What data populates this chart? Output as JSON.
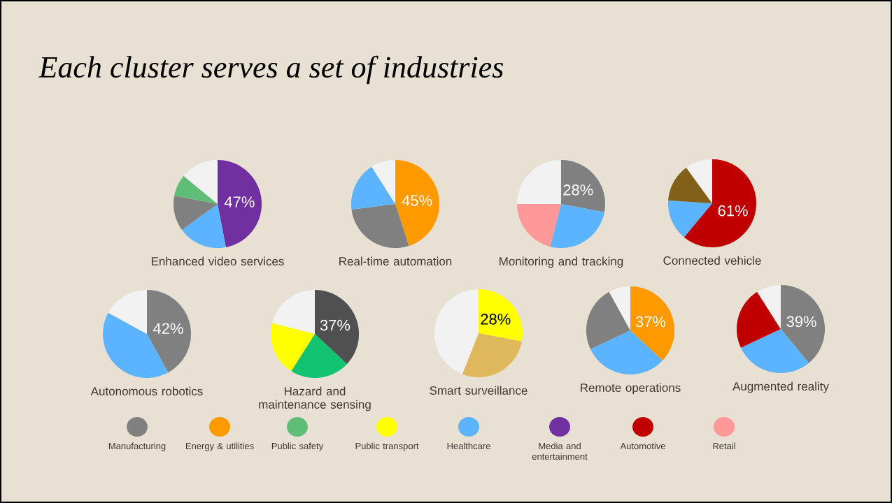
{
  "chart_data": [
    {
      "type": "other",
      "title": "Each cluster serves a set of industries",
      "categories": [
        "Manufacturing",
        "Energy & utilities",
        "Public safety",
        "Public transport",
        "Healthcare",
        "Media and entertainment",
        "Automotive",
        "Retail"
      ],
      "colors": [
        "#808080",
        "#ff9900",
        "#60bd78",
        "#ffff00",
        "#5cb3ff",
        "#7030a0",
        "#c00000",
        "#ff9999"
      ]
    },
    {
      "type": "pie",
      "title": "Enhanced video services",
      "categories": [
        null,
        null,
        null,
        null,
        null
      ],
      "values": [
        47,
        18,
        13,
        8,
        14
      ],
      "colors": [
        "#7030a0",
        "#5cb3ff",
        "#808080",
        "#60bd78",
        "#f2f2f2"
      ],
      "value_labels": [
        "47%",
        null,
        null,
        null,
        null
      ]
    },
    {
      "type": "pie",
      "title": "Real-time automation",
      "categories": [
        null,
        null,
        null,
        null
      ],
      "values": [
        45,
        28,
        18,
        9
      ],
      "colors": [
        "#ff9900",
        "#808080",
        "#5cb3ff",
        "#f2f2f2"
      ],
      "value_labels": [
        "45%",
        null,
        null,
        null
      ]
    },
    {
      "type": "pie",
      "title": "Monitoring and tracking",
      "categories": [
        null,
        null,
        null,
        null
      ],
      "values": [
        28,
        26,
        21,
        25
      ],
      "colors": [
        "#808080",
        "#5cb3ff",
        "#ff9999",
        "#f2f2f2"
      ],
      "value_labels": [
        "28%",
        null,
        null,
        null
      ]
    },
    {
      "type": "pie",
      "title": "Connected vehicle",
      "categories": [
        null,
        null,
        null,
        null
      ],
      "values": [
        61,
        15,
        14,
        10
      ],
      "colors": [
        "#c00000",
        "#5cb3ff",
        "#836019",
        "#f2f2f2"
      ],
      "value_labels": [
        "61%",
        null,
        null,
        null
      ]
    },
    {
      "type": "pie",
      "title": "Autonomous robotics",
      "categories": [
        null,
        null,
        null
      ],
      "values": [
        42,
        41,
        17
      ],
      "colors": [
        "#808080",
        "#5cb3ff",
        "#f2f2f2"
      ],
      "value_labels": [
        "42%",
        null,
        null
      ]
    },
    {
      "type": "pie",
      "title": "Hazard and maintenance sensing",
      "categories": [
        null,
        null,
        null,
        null
      ],
      "values": [
        37,
        22,
        20,
        21
      ],
      "colors": [
        "#505050",
        "#12c372",
        "#ffff00",
        "#f2f2f2"
      ],
      "value_labels": [
        "37%",
        null,
        null,
        null
      ]
    },
    {
      "type": "pie",
      "title": "Smart surveillance",
      "categories": [
        null,
        null,
        null
      ],
      "values": [
        28,
        28,
        44
      ],
      "colors": [
        "#ffff00",
        "#dfb75d",
        "#f2f2f2"
      ],
      "value_labels": [
        "28%",
        null,
        null
      ]
    },
    {
      "type": "pie",
      "title": "Remote operations",
      "categories": [
        null,
        null,
        null,
        null
      ],
      "values": [
        37,
        31,
        24,
        8
      ],
      "colors": [
        "#ff9900",
        "#5cb3ff",
        "#808080",
        "#f2f2f2"
      ],
      "value_labels": [
        "37%",
        null,
        null,
        null
      ]
    },
    {
      "type": "pie",
      "title": "Augmented reality",
      "categories": [
        null,
        null,
        null,
        null
      ],
      "values": [
        39,
        29,
        23,
        9
      ],
      "colors": [
        "#808080",
        "#5cb3ff",
        "#c00000",
        "#f2f2f2"
      ],
      "value_labels": [
        "39%",
        null,
        null,
        null
      ]
    }
  ]
}
